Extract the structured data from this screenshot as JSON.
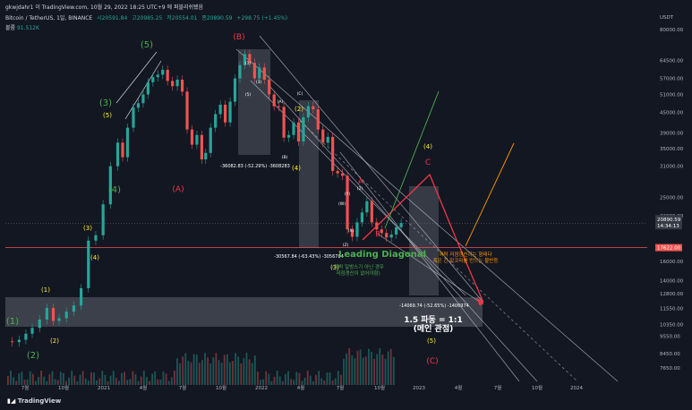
{
  "header": {
    "watermark": "gkwjdahr1 이 TradingView.com, 10월 29, 2022 18:25 UTC+9 에 퍼블리쉬됐음",
    "symbol": "Bitcoin / TetherUS, 1일, BINANCE",
    "open": "시20591.84",
    "high": "고20985.25",
    "low": "저20554.01",
    "close": "종20890.59",
    "change": "+298.75 (+1.45%)",
    "volume_label": "볼륨",
    "volume_value": "91.512K"
  },
  "footer": {
    "brand": "TradingView"
  },
  "colors": {
    "background": "#131722",
    "up_candle": "#26a69a",
    "down_candle": "#ef5350",
    "green_label": "#4caf50",
    "yellow_label": "#ffeb3b",
    "red_label": "#f23645",
    "orange": "#ff9800",
    "price_line": "#ef5350"
  },
  "chart_data": {
    "type": "candlestick",
    "title": "Bitcoin / TetherUS, 1일, BINANCE",
    "yscale": "log",
    "ylim": [
      6900,
      93000
    ],
    "currency": "USDT",
    "y_ticks": [
      80000.0,
      64500.0,
      57000.0,
      51000.0,
      45000.0,
      39000.0,
      35000.0,
      31000.0,
      25000.0,
      22000.0,
      16000.0,
      14000.0,
      12800.0,
      11550.0,
      10350.0,
      9550.0,
      8450.0,
      7650.0
    ],
    "x_ticks": [
      "7월",
      "10월",
      "2021",
      "4월",
      "7월",
      "10월",
      "2022",
      "4월",
      "7월",
      "10월",
      "2023",
      "4월",
      "7월",
      "10월",
      "2024"
    ],
    "last_price": {
      "value": "20890.59",
      "countdown": "14:34:13"
    },
    "level_line": {
      "value": "17622.00"
    },
    "price_path": [
      [
        0,
        9200
      ],
      [
        14,
        9150
      ],
      [
        28,
        9300
      ],
      [
        42,
        9700
      ],
      [
        55,
        10100
      ],
      [
        70,
        10700
      ],
      [
        85,
        11600
      ],
      [
        98,
        10600
      ],
      [
        110,
        10800
      ],
      [
        125,
        11300
      ],
      [
        140,
        11800
      ],
      [
        155,
        13300
      ],
      [
        170,
        18500
      ],
      [
        185,
        19200
      ],
      [
        200,
        23800
      ],
      [
        215,
        31000
      ],
      [
        230,
        36500
      ],
      [
        240,
        33000
      ],
      [
        250,
        40500
      ],
      [
        262,
        46500
      ],
      [
        272,
        48000
      ],
      [
        282,
        51000
      ],
      [
        292,
        55500
      ],
      [
        302,
        57500
      ],
      [
        312,
        58500
      ],
      [
        322,
        60500
      ],
      [
        332,
        56000
      ],
      [
        342,
        54000
      ],
      [
        352,
        56500
      ],
      [
        362,
        52000
      ],
      [
        372,
        40000
      ],
      [
        382,
        36000
      ],
      [
        392,
        38500
      ],
      [
        402,
        32500
      ],
      [
        410,
        34000
      ],
      [
        420,
        40500
      ],
      [
        430,
        44500
      ],
      [
        440,
        47500
      ],
      [
        450,
        42000
      ],
      [
        460,
        48500
      ],
      [
        470,
        57000
      ],
      [
        480,
        62500
      ],
      [
        490,
        67500
      ],
      [
        500,
        63500
      ],
      [
        510,
        57000
      ],
      [
        520,
        61500
      ],
      [
        530,
        56500
      ],
      [
        540,
        51000
      ],
      [
        550,
        47000
      ],
      [
        560,
        46800
      ],
      [
        570,
        37800
      ],
      [
        580,
        38500
      ],
      [
        590,
        42000
      ],
      [
        600,
        36800
      ],
      [
        610,
        43500
      ],
      [
        620,
        47000
      ],
      [
        630,
        46000
      ],
      [
        640,
        40000
      ],
      [
        650,
        36500
      ],
      [
        660,
        38000
      ],
      [
        670,
        30000
      ],
      [
        680,
        29500
      ],
      [
        690,
        29000
      ],
      [
        700,
        20000
      ],
      [
        710,
        19000
      ],
      [
        720,
        21000
      ],
      [
        730,
        22500
      ],
      [
        740,
        24300
      ],
      [
        750,
        21000
      ],
      [
        760,
        20000
      ],
      [
        770,
        19500
      ],
      [
        780,
        18900
      ],
      [
        790,
        19300
      ],
      [
        800,
        20300
      ],
      [
        810,
        20900
      ]
    ],
    "annotations": {
      "wave_labels_green": [
        "(1)",
        "(2)",
        "(3)",
        "(4)",
        "(5)"
      ],
      "wave_labels_yellow": [
        "(1)",
        "(2)",
        "(3)",
        "(4)",
        "(5)",
        "(4)",
        "(5)",
        "(3)",
        "(4)"
      ],
      "wave_labels_red": [
        "(A)",
        "(B)",
        "(C)",
        "A",
        "B",
        "C",
        "(C)"
      ],
      "sub_labels": [
        "(A)",
        "(B)",
        "(C)",
        "(W)",
        "(X)",
        "(Y)",
        "(Z)",
        "(1)",
        "(2)",
        "(3)",
        "(4)",
        "(5)"
      ],
      "measure_1": "-36082.83 (-52.29%) -3608283",
      "measure_2": "-30567.84 (-63.43%) -3056784",
      "measure_3": "-14069.74 (-52.65%) -1406974",
      "leading_diagonal": "Leading Diagonal",
      "diagonal_note": "(하락 일방스기 아닌 경우\n저점갱신이 없어야함)",
      "note_orange": "하락 저점갱신하는 형태다\n혹은 긴 밑꼬리를 만드는 불반등",
      "ratio_text": "1.5 파동 = 1:1",
      "main_focus": "(메인 관점)"
    }
  }
}
